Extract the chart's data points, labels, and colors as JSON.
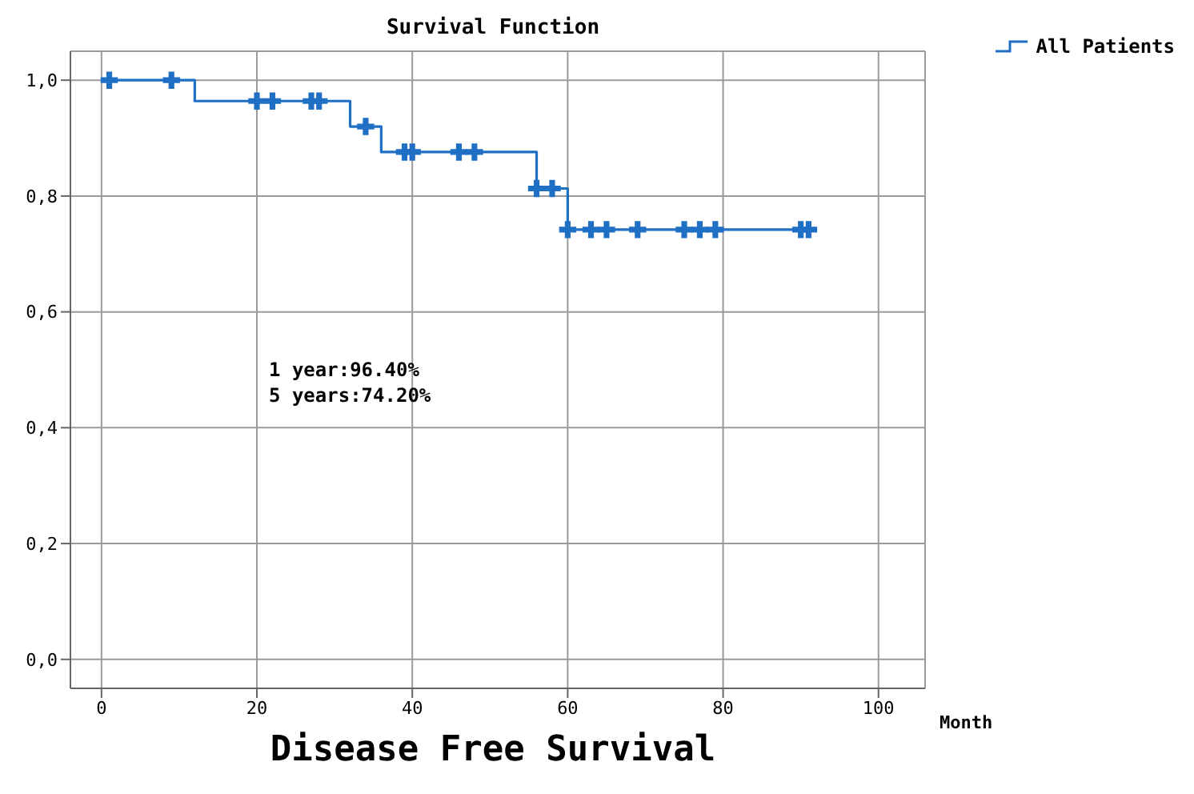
{
  "chart_data": {
    "type": "step",
    "title": "Survival Function",
    "subtitle": "Disease Free Survival",
    "xlabel": "Month",
    "annotations": [
      "1 year:96.40%",
      "5 years:74.20%"
    ],
    "xlim": [
      -4,
      106
    ],
    "xticks": [
      0,
      20,
      40,
      60,
      80,
      100
    ],
    "ylim": [
      -0.05,
      1.05
    ],
    "yticks": [
      {
        "value": 0,
        "label": "0,0"
      },
      {
        "value": 0.2,
        "label": "0,2"
      },
      {
        "value": 0.4,
        "label": "0,4"
      },
      {
        "value": 0.6,
        "label": "0,6"
      },
      {
        "value": 0.8,
        "label": "0,8"
      },
      {
        "value": 1,
        "label": "1,0"
      }
    ],
    "grid": true,
    "legend": "top right",
    "line_style": "solid",
    "series": [
      {
        "name": "All Patients",
        "color": "#1f6fc5",
        "marker": "none",
        "x": [
          0,
          12,
          32,
          36,
          56,
          60,
          91
        ],
        "values": [
          1,
          0.964,
          0.92,
          0.876,
          0.813,
          0.742,
          0.742
        ]
      },
      {
        "type": "scatter",
        "color": "#1f6fc5",
        "marker": "cross",
        "x": [
          1,
          9,
          20,
          22,
          27,
          28,
          34,
          39,
          40,
          46,
          48,
          56,
          58,
          60,
          63,
          65,
          69,
          75,
          77,
          79,
          90,
          91
        ],
        "values": [
          1,
          1,
          0.964,
          0.964,
          0.964,
          0.964,
          0.92,
          0.876,
          0.876,
          0.876,
          0.876,
          0.813,
          0.813,
          0.742,
          0.742,
          0.742,
          0.742,
          0.742,
          0.742,
          0.742,
          0.742,
          0.742
        ]
      }
    ]
  }
}
